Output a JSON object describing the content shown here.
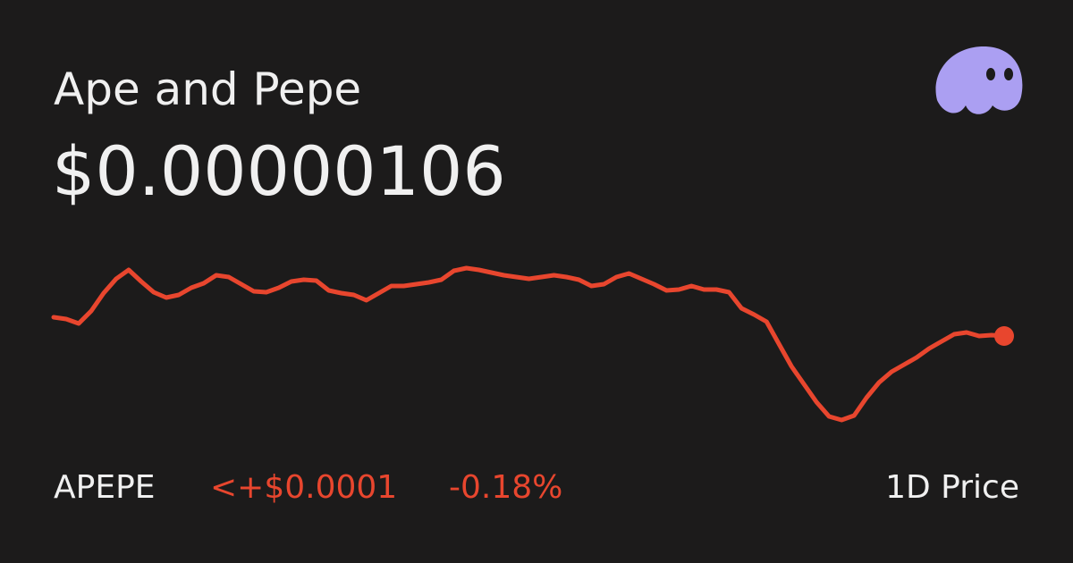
{
  "header": {
    "name": "Ape and Pepe",
    "price": "$0.00000106"
  },
  "sparkline": {
    "type": "line",
    "color": "#e8462e",
    "values": [
      145,
      143,
      138,
      152,
      172,
      188,
      198,
      185,
      173,
      167,
      170,
      178,
      183,
      192,
      190,
      182,
      174,
      173,
      178,
      185,
      187,
      186,
      175,
      172,
      170,
      164,
      172,
      180,
      180,
      182,
      184,
      187,
      197,
      200,
      198,
      195,
      192,
      190,
      188,
      190,
      192,
      190,
      187,
      180,
      182,
      190,
      194,
      188,
      182,
      175,
      176,
      180,
      176,
      176,
      173,
      155,
      148,
      140,
      115,
      90,
      70,
      50,
      34,
      30,
      35,
      55,
      72,
      84,
      92,
      100,
      110,
      118,
      126,
      128,
      124,
      125,
      124
    ]
  },
  "footer": {
    "symbol": "APEPE",
    "change": "<+$0.0001",
    "percent": "-0.18%",
    "period": "1D Price"
  }
}
